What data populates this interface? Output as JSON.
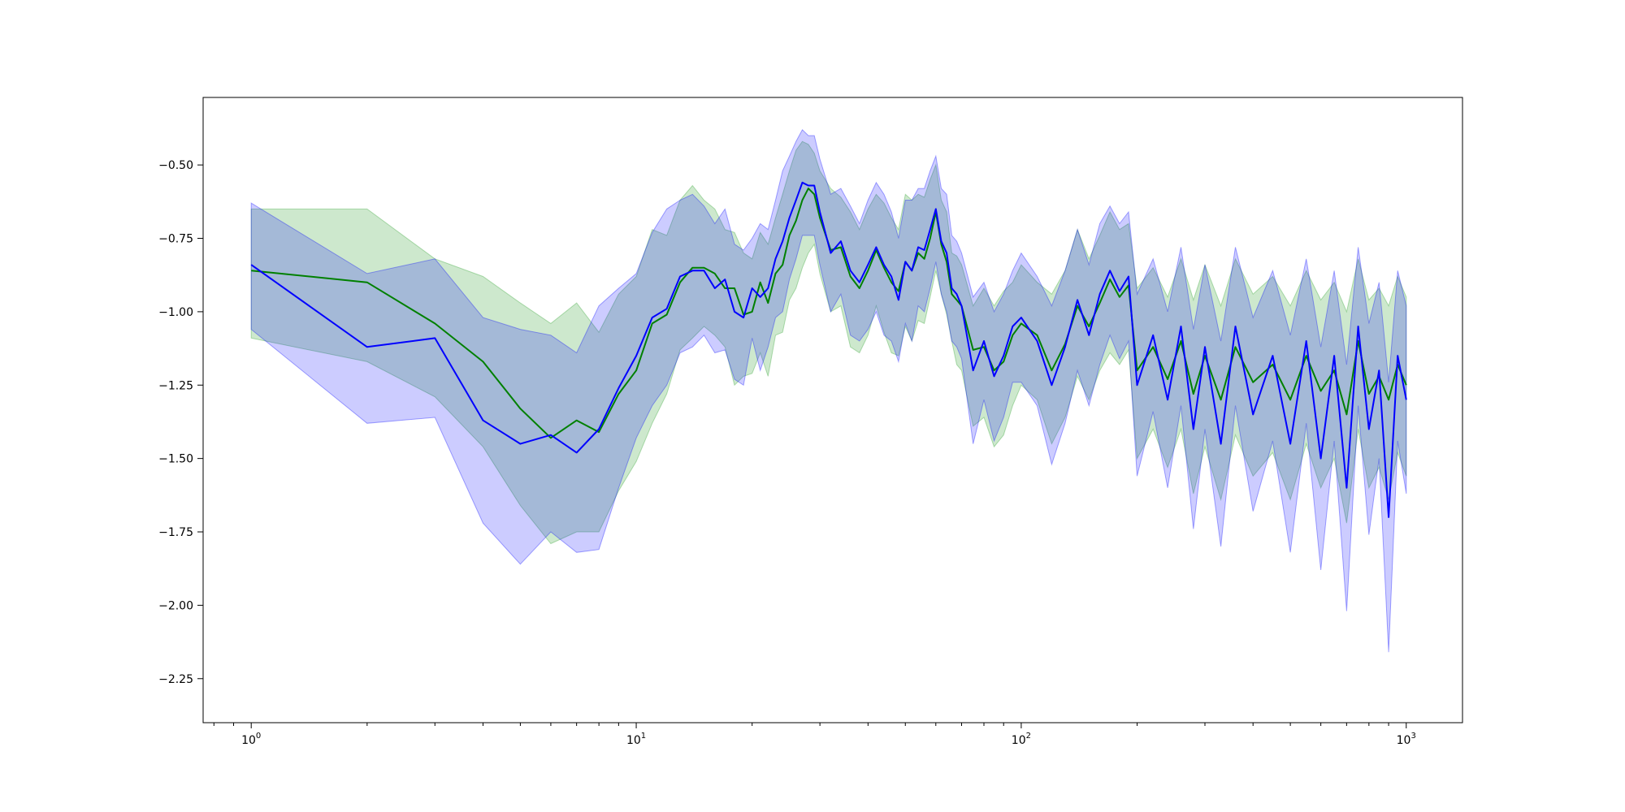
{
  "chart_data": {
    "type": "line",
    "title": "",
    "xlabel": "",
    "ylabel": "",
    "xscale": "log",
    "xlim": [
      0.75,
      1400
    ],
    "ylim": [
      -2.4,
      -0.27
    ],
    "grid": false,
    "legend": "none",
    "x_ticks": [
      {
        "value": 1,
        "base": "10",
        "exp": "0"
      },
      {
        "value": 10,
        "base": "10",
        "exp": "1"
      },
      {
        "value": 100,
        "base": "10",
        "exp": "2"
      },
      {
        "value": 1000,
        "base": "10",
        "exp": "3"
      }
    ],
    "y_ticks": [
      {
        "value": -0.5,
        "label": "−0.50"
      },
      {
        "value": -0.75,
        "label": "−0.75"
      },
      {
        "value": -1.0,
        "label": "−1.00"
      },
      {
        "value": -1.25,
        "label": "−1.25"
      },
      {
        "value": -1.5,
        "label": "−1.50"
      },
      {
        "value": -1.75,
        "label": "−1.75"
      },
      {
        "value": -2.0,
        "label": "−2.00"
      },
      {
        "value": -2.25,
        "label": "−2.25"
      }
    ],
    "series": [
      {
        "color": "#008000",
        "band_color": "#2ca02c",
        "band_opacity": 0.24,
        "x": [
          1,
          2,
          3,
          4,
          5,
          6,
          7,
          8,
          9,
          10,
          11,
          12,
          13,
          14,
          15,
          16,
          17,
          18,
          19,
          20,
          21,
          22,
          23,
          24,
          25,
          26,
          27,
          28,
          29,
          30,
          32,
          34,
          36,
          38,
          40,
          42,
          44,
          46,
          48,
          50,
          52,
          54,
          56,
          58,
          60,
          62,
          64,
          66,
          68,
          70,
          75,
          80,
          85,
          90,
          95,
          100,
          110,
          120,
          130,
          140,
          150,
          160,
          170,
          180,
          190,
          200,
          220,
          240,
          260,
          280,
          300,
          330,
          360,
          400,
          450,
          500,
          550,
          600,
          650,
          700,
          750,
          800,
          850,
          900,
          950,
          1000
        ],
        "mean": [
          -0.86,
          -0.9,
          -1.04,
          -1.17,
          -1.33,
          -1.43,
          -1.37,
          -1.41,
          -1.28,
          -1.2,
          -1.04,
          -1.01,
          -0.9,
          -0.85,
          -0.85,
          -0.87,
          -0.92,
          -0.92,
          -1.01,
          -1.0,
          -0.9,
          -0.97,
          -0.87,
          -0.84,
          -0.74,
          -0.69,
          -0.62,
          -0.58,
          -0.6,
          -0.68,
          -0.79,
          -0.78,
          -0.88,
          -0.92,
          -0.86,
          -0.79,
          -0.85,
          -0.9,
          -0.93,
          -0.83,
          -0.86,
          -0.8,
          -0.82,
          -0.75,
          -0.66,
          -0.77,
          -0.83,
          -0.94,
          -0.96,
          -0.98,
          -1.13,
          -1.12,
          -1.2,
          -1.17,
          -1.08,
          -1.04,
          -1.08,
          -1.2,
          -1.11,
          -0.98,
          -1.05,
          -0.97,
          -0.89,
          -0.95,
          -0.91,
          -1.2,
          -1.12,
          -1.23,
          -1.1,
          -1.28,
          -1.15,
          -1.3,
          -1.12,
          -1.24,
          -1.18,
          -1.3,
          -1.15,
          -1.27,
          -1.2,
          -1.35,
          -1.1,
          -1.28,
          -1.22,
          -1.3,
          -1.18,
          -1.25
        ],
        "upper": [
          -0.65,
          -0.65,
          -0.82,
          -0.88,
          -0.97,
          -1.04,
          -0.97,
          -1.07,
          -0.94,
          -0.88,
          -0.72,
          -0.74,
          -0.62,
          -0.57,
          -0.62,
          -0.65,
          -0.72,
          -0.73,
          -0.8,
          -0.82,
          -0.73,
          -0.77,
          -0.68,
          -0.6,
          -0.52,
          -0.45,
          -0.42,
          -0.43,
          -0.46,
          -0.52,
          -0.58,
          -0.61,
          -0.66,
          -0.72,
          -0.65,
          -0.6,
          -0.63,
          -0.68,
          -0.72,
          -0.6,
          -0.62,
          -0.6,
          -0.61,
          -0.55,
          -0.5,
          -0.62,
          -0.66,
          -0.8,
          -0.81,
          -0.84,
          -0.98,
          -0.92,
          -0.98,
          -0.93,
          -0.9,
          -0.84,
          -0.9,
          -0.94,
          -0.86,
          -0.72,
          -0.82,
          -0.74,
          -0.66,
          -0.72,
          -0.7,
          -0.92,
          -0.85,
          -0.95,
          -0.82,
          -0.96,
          -0.84,
          -0.98,
          -0.82,
          -0.94,
          -0.88,
          -0.98,
          -0.86,
          -0.96,
          -0.9,
          -1.0,
          -0.82,
          -0.96,
          -0.92,
          -0.98,
          -0.88,
          -0.95
        ],
        "lower": [
          -1.09,
          -1.17,
          -1.29,
          -1.46,
          -1.66,
          -1.79,
          -1.75,
          -1.75,
          -1.61,
          -1.51,
          -1.38,
          -1.28,
          -1.13,
          -1.09,
          -1.05,
          -1.08,
          -1.12,
          -1.25,
          -1.22,
          -1.21,
          -1.14,
          -1.22,
          -1.08,
          -1.07,
          -0.96,
          -0.92,
          -0.85,
          -0.8,
          -0.77,
          -0.87,
          -1.0,
          -0.98,
          -1.12,
          -1.14,
          -1.08,
          -0.98,
          -1.07,
          -1.14,
          -1.15,
          -1.05,
          -1.1,
          -1.03,
          -1.04,
          -0.95,
          -0.86,
          -0.94,
          -1.01,
          -1.1,
          -1.18,
          -1.2,
          -1.39,
          -1.36,
          -1.46,
          -1.42,
          -1.32,
          -1.25,
          -1.3,
          -1.45,
          -1.36,
          -1.22,
          -1.3,
          -1.2,
          -1.14,
          -1.18,
          -1.13,
          -1.5,
          -1.4,
          -1.53,
          -1.4,
          -1.62,
          -1.46,
          -1.64,
          -1.42,
          -1.56,
          -1.48,
          -1.64,
          -1.45,
          -1.6,
          -1.5,
          -1.72,
          -1.4,
          -1.6,
          -1.53,
          -1.64,
          -1.48,
          -1.56
        ]
      },
      {
        "color": "#0000ff",
        "band_color": "#0000ff",
        "band_opacity": 0.2,
        "x": [
          1,
          2,
          3,
          4,
          5,
          6,
          7,
          8,
          9,
          10,
          11,
          12,
          13,
          14,
          15,
          16,
          17,
          18,
          19,
          20,
          21,
          22,
          23,
          24,
          25,
          26,
          27,
          28,
          29,
          30,
          32,
          34,
          36,
          38,
          40,
          42,
          44,
          46,
          48,
          50,
          52,
          54,
          56,
          58,
          60,
          62,
          64,
          66,
          68,
          70,
          75,
          80,
          85,
          90,
          95,
          100,
          110,
          120,
          130,
          140,
          150,
          160,
          170,
          180,
          190,
          200,
          220,
          240,
          260,
          280,
          300,
          330,
          360,
          400,
          450,
          500,
          550,
          600,
          650,
          700,
          750,
          800,
          850,
          900,
          950,
          1000
        ],
        "mean": [
          -0.84,
          -1.12,
          -1.09,
          -1.37,
          -1.45,
          -1.42,
          -1.48,
          -1.4,
          -1.26,
          -1.15,
          -1.02,
          -0.99,
          -0.88,
          -0.86,
          -0.86,
          -0.92,
          -0.89,
          -1.0,
          -1.02,
          -0.92,
          -0.95,
          -0.92,
          -0.82,
          -0.76,
          -0.68,
          -0.62,
          -0.56,
          -0.57,
          -0.57,
          -0.66,
          -0.8,
          -0.76,
          -0.86,
          -0.9,
          -0.84,
          -0.78,
          -0.84,
          -0.88,
          -0.96,
          -0.83,
          -0.86,
          -0.78,
          -0.79,
          -0.72,
          -0.65,
          -0.76,
          -0.8,
          -0.92,
          -0.94,
          -0.98,
          -1.2,
          -1.1,
          -1.22,
          -1.15,
          -1.05,
          -1.02,
          -1.1,
          -1.25,
          -1.12,
          -0.96,
          -1.08,
          -0.94,
          -0.86,
          -0.93,
          -0.88,
          -1.25,
          -1.08,
          -1.3,
          -1.05,
          -1.4,
          -1.12,
          -1.45,
          -1.05,
          -1.35,
          -1.15,
          -1.45,
          -1.1,
          -1.5,
          -1.15,
          -1.6,
          -1.05,
          -1.4,
          -1.2,
          -1.7,
          -1.15,
          -1.3
        ],
        "upper": [
          -0.63,
          -0.87,
          -0.82,
          -1.02,
          -1.06,
          -1.08,
          -1.14,
          -0.98,
          -0.92,
          -0.87,
          -0.73,
          -0.65,
          -0.62,
          -0.6,
          -0.64,
          -0.7,
          -0.65,
          -0.77,
          -0.79,
          -0.75,
          -0.7,
          -0.72,
          -0.62,
          -0.52,
          -0.47,
          -0.42,
          -0.38,
          -0.4,
          -0.4,
          -0.48,
          -0.6,
          -0.58,
          -0.64,
          -0.7,
          -0.62,
          -0.56,
          -0.6,
          -0.66,
          -0.75,
          -0.62,
          -0.62,
          -0.58,
          -0.58,
          -0.52,
          -0.47,
          -0.58,
          -0.6,
          -0.74,
          -0.76,
          -0.8,
          -0.95,
          -0.9,
          -1.0,
          -0.94,
          -0.86,
          -0.8,
          -0.88,
          -0.98,
          -0.86,
          -0.72,
          -0.84,
          -0.7,
          -0.64,
          -0.7,
          -0.66,
          -0.94,
          -0.82,
          -1.0,
          -0.78,
          -1.06,
          -0.84,
          -1.1,
          -0.78,
          -1.02,
          -0.86,
          -1.08,
          -0.82,
          -1.12,
          -0.86,
          -1.18,
          -0.78,
          -1.04,
          -0.9,
          -1.24,
          -0.86,
          -0.98
        ],
        "lower": [
          -1.06,
          -1.38,
          -1.36,
          -1.72,
          -1.86,
          -1.75,
          -1.82,
          -1.81,
          -1.6,
          -1.43,
          -1.32,
          -1.25,
          -1.14,
          -1.12,
          -1.08,
          -1.14,
          -1.13,
          -1.23,
          -1.25,
          -1.09,
          -1.2,
          -1.12,
          -1.02,
          -1.0,
          -0.89,
          -0.82,
          -0.74,
          -0.74,
          -0.74,
          -0.84,
          -1.0,
          -0.94,
          -1.08,
          -1.1,
          -1.06,
          -1.0,
          -1.08,
          -1.1,
          -1.17,
          -1.04,
          -1.1,
          -0.98,
          -1.0,
          -0.92,
          -0.83,
          -0.94,
          -1.0,
          -1.1,
          -1.12,
          -1.16,
          -1.45,
          -1.3,
          -1.44,
          -1.36,
          -1.24,
          -1.24,
          -1.32,
          -1.52,
          -1.38,
          -1.2,
          -1.32,
          -1.18,
          -1.08,
          -1.16,
          -1.1,
          -1.56,
          -1.34,
          -1.6,
          -1.32,
          -1.74,
          -1.4,
          -1.8,
          -1.32,
          -1.68,
          -1.44,
          -1.82,
          -1.38,
          -1.88,
          -1.44,
          -2.02,
          -1.32,
          -1.76,
          -1.5,
          -2.16,
          -1.44,
          -1.62
        ]
      }
    ]
  }
}
